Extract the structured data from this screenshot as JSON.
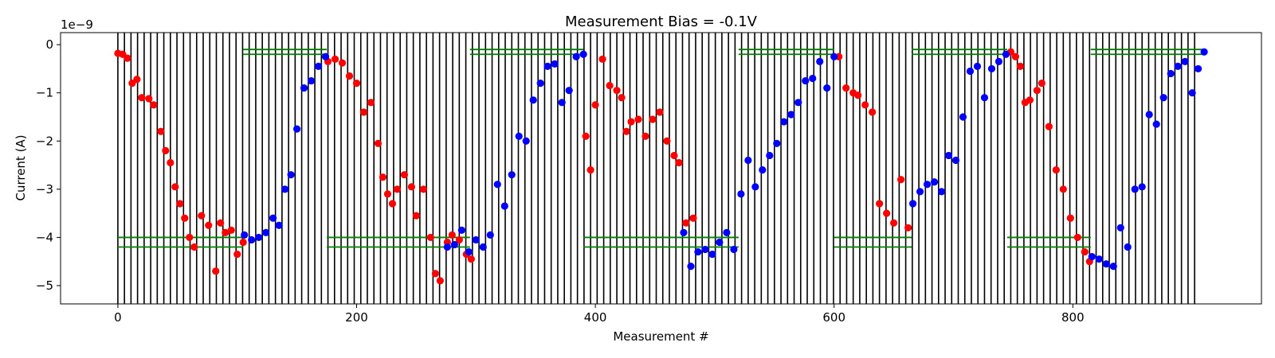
{
  "chart_data": {
    "type": "scatter",
    "title": "Measurement Bias = -0.1V",
    "xlabel": "Measurement #",
    "ylabel": "Current (A)",
    "y_offset_text": "1e−9",
    "y_scale": 1e-09,
    "xlim": [
      -48,
      958
    ],
    "ylim": [
      -5.38,
      0.25
    ],
    "x_ticks": [
      0,
      200,
      400,
      600,
      800
    ],
    "x_tick_labels": [
      "0",
      "200",
      "400",
      "600",
      "800"
    ],
    "y_ticks": [
      0,
      -1,
      -2,
      -3,
      -4,
      -5
    ],
    "y_tick_labels": [
      "0",
      "−1",
      "−2",
      "−3",
      "−4",
      "−5"
    ],
    "grid": false,
    "colors": {
      "red_series": "#ff0000",
      "blue_series": "#0000ff",
      "vlines": "#000000",
      "hlines": "#008000"
    },
    "vertical_lines": {
      "start": 0,
      "end": 905,
      "step": 5.5
    },
    "horizontal_lines": [
      {
        "y": -0.1,
        "xmin": 105,
        "xmax": 175
      },
      {
        "y": -0.2,
        "xmin": 105,
        "xmax": 175
      },
      {
        "y": -0.1,
        "xmin": 295,
        "xmax": 390
      },
      {
        "y": -0.2,
        "xmin": 295,
        "xmax": 390
      },
      {
        "y": -0.1,
        "xmin": 520,
        "xmax": 600
      },
      {
        "y": -0.2,
        "xmin": 520,
        "xmax": 600
      },
      {
        "y": -0.1,
        "xmin": 665,
        "xmax": 745
      },
      {
        "y": -0.2,
        "xmin": 665,
        "xmax": 745
      },
      {
        "y": -0.1,
        "xmin": 815,
        "xmax": 910
      },
      {
        "y": -0.2,
        "xmin": 815,
        "xmax": 910
      },
      {
        "y": -4.0,
        "xmin": 0,
        "xmax": 105
      },
      {
        "y": -4.2,
        "xmin": 0,
        "xmax": 105
      },
      {
        "y": -4.0,
        "xmin": 175,
        "xmax": 295
      },
      {
        "y": -4.2,
        "xmin": 175,
        "xmax": 295
      },
      {
        "y": -4.0,
        "xmin": 390,
        "xmax": 520
      },
      {
        "y": -4.2,
        "xmin": 390,
        "xmax": 520
      },
      {
        "y": -4.0,
        "xmin": 600,
        "xmax": 665
      },
      {
        "y": -4.2,
        "xmin": 600,
        "xmax": 665
      },
      {
        "y": -4.0,
        "xmin": 745,
        "xmax": 815
      },
      {
        "y": -4.2,
        "xmin": 745,
        "xmax": 815
      }
    ],
    "series": [
      {
        "color": "#ff0000",
        "x": [
          0,
          4,
          8,
          12,
          16,
          20,
          26,
          30,
          36,
          40,
          44,
          48,
          52,
          56,
          60,
          64,
          70,
          76,
          82,
          86,
          90,
          95,
          100,
          105,
          176,
          182,
          188,
          194,
          200,
          206,
          212,
          218,
          222,
          226,
          230,
          234,
          240,
          246,
          250,
          256,
          262,
          266,
          270,
          276,
          280,
          286,
          292,
          296,
          392,
          396,
          400,
          406,
          412,
          418,
          422,
          426,
          430,
          436,
          442,
          448,
          454,
          460,
          466,
          470,
          476,
          482,
          604,
          610,
          616,
          620,
          626,
          632,
          638,
          644,
          650,
          656,
          662,
          748,
          752,
          756,
          760,
          764,
          770,
          774,
          780,
          786,
          792,
          798,
          804,
          810,
          814
        ],
        "y": [
          -0.18,
          -0.2,
          -0.28,
          -0.8,
          -0.72,
          -1.1,
          -1.12,
          -1.25,
          -1.8,
          -2.2,
          -2.45,
          -2.95,
          -3.3,
          -3.6,
          -4.0,
          -4.2,
          -3.55,
          -3.75,
          -4.7,
          -3.7,
          -3.9,
          -3.85,
          -4.35,
          -4.1,
          -0.35,
          -0.3,
          -0.38,
          -0.65,
          -0.8,
          -1.4,
          -1.2,
          -2.05,
          -2.75,
          -3.1,
          -3.3,
          -3.0,
          -2.7,
          -2.95,
          -3.55,
          -3.0,
          -4.0,
          -4.75,
          -4.9,
          -4.1,
          -3.95,
          -4.05,
          -4.35,
          -4.45,
          -1.9,
          -2.6,
          -1.25,
          -0.3,
          -0.85,
          -0.95,
          -1.1,
          -1.8,
          -1.6,
          -1.55,
          -1.9,
          -1.55,
          -1.4,
          -2.0,
          -2.3,
          -2.45,
          -3.7,
          -3.6,
          -0.25,
          -0.9,
          -1.0,
          -1.05,
          -1.25,
          -1.4,
          -3.3,
          -3.5,
          -3.7,
          -2.8,
          -3.8,
          -0.15,
          -0.25,
          -0.45,
          -1.2,
          -1.15,
          -0.95,
          -0.8,
          -1.7,
          -2.6,
          -3.0,
          -3.6,
          -4.0,
          -4.3,
          -4.5
        ]
      },
      {
        "color": "#0000ff",
        "x": [
          106,
          112,
          118,
          124,
          130,
          135,
          140,
          145,
          150,
          156,
          162,
          168,
          174,
          276,
          282,
          288,
          294,
          300,
          306,
          312,
          318,
          324,
          330,
          336,
          342,
          348,
          354,
          360,
          366,
          372,
          378,
          384,
          390,
          474,
          480,
          486,
          492,
          498,
          504,
          510,
          516,
          522,
          528,
          534,
          540,
          546,
          552,
          558,
          564,
          570,
          576,
          582,
          588,
          594,
          600,
          666,
          672,
          678,
          684,
          690,
          696,
          702,
          708,
          714,
          720,
          726,
          732,
          738,
          744,
          816,
          822,
          828,
          834,
          840,
          846,
          852,
          858,
          864,
          870,
          876,
          882,
          888,
          894,
          900,
          905,
          910
        ],
        "y": [
          -3.95,
          -4.05,
          -4.0,
          -3.9,
          -3.6,
          -3.75,
          -3.0,
          -2.7,
          -1.75,
          -0.9,
          -0.75,
          -0.45,
          -0.25,
          -4.2,
          -4.15,
          -3.85,
          -4.3,
          -4.05,
          -4.2,
          -3.95,
          -2.9,
          -3.35,
          -2.7,
          -1.9,
          -2.0,
          -1.15,
          -0.8,
          -0.45,
          -0.4,
          -1.2,
          -0.95,
          -0.25,
          -0.2,
          -3.9,
          -4.6,
          -4.3,
          -4.25,
          -4.35,
          -4.1,
          -3.9,
          -4.25,
          -3.1,
          -2.4,
          -2.95,
          -2.6,
          -2.3,
          -2.05,
          -1.6,
          -1.45,
          -1.2,
          -0.75,
          -0.7,
          -0.35,
          -0.9,
          -0.25,
          -3.3,
          -3.05,
          -2.9,
          -2.85,
          -3.05,
          -2.3,
          -2.4,
          -1.5,
          -0.55,
          -0.45,
          -1.1,
          -0.5,
          -0.35,
          -0.2,
          -4.4,
          -4.45,
          -4.55,
          -4.6,
          -3.8,
          -4.2,
          -3.0,
          -2.95,
          -1.45,
          -1.65,
          -1.1,
          -0.6,
          -0.45,
          -0.35,
          -1.0,
          -0.5,
          -0.15
        ]
      }
    ]
  }
}
